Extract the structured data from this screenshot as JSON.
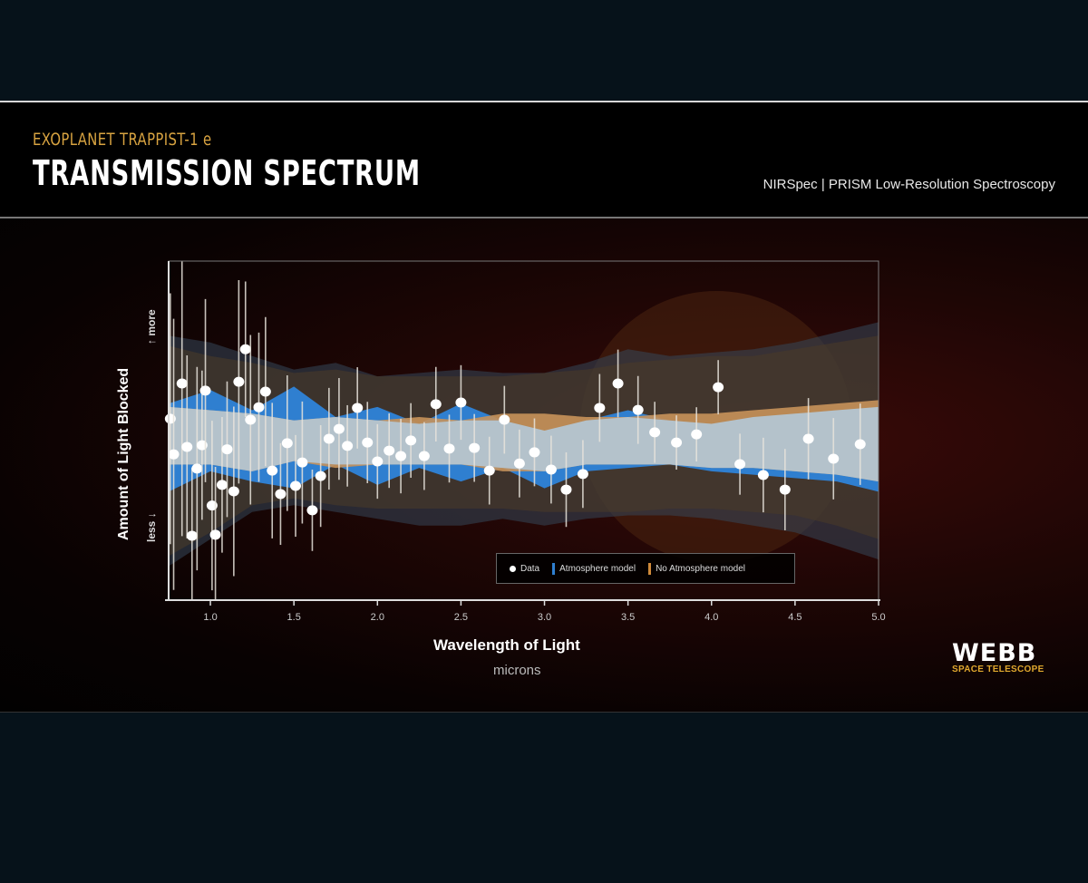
{
  "header": {
    "kicker": "EXOPLANET TRAPPIST-1 e",
    "title": "TRANSMISSION SPECTRUM",
    "instrument": "NIRSpec | PRISM Low-Resolution Spectroscopy"
  },
  "logo": {
    "name": "WEBB",
    "tagline": "SPACE TELESCOPE"
  },
  "chart_data": {
    "type": "scatter",
    "title": "",
    "xlabel": "Wavelength of Light",
    "xunit": "microns",
    "ylabel": "Amount of Light Blocked",
    "y_direction_labels": {
      "top": "more",
      "bottom": "less"
    },
    "y_units": "relative (no tick values printed)",
    "xlim": [
      0.75,
      5.0
    ],
    "ylim": [
      0,
      100
    ],
    "xticks": [
      "1.0",
      "1.5",
      "2.0",
      "2.5",
      "3.0",
      "3.5",
      "4.0",
      "4.5",
      "5.0"
    ],
    "grid": false,
    "legend_position": "bottom-right",
    "legend": [
      {
        "label": "Data",
        "color": "#ffffff"
      },
      {
        "label": "Atmosphere model",
        "color": "#2f7fd0"
      },
      {
        "label": "No Atmosphere model",
        "color": "#d08a3a"
      }
    ],
    "data": {
      "x": [
        0.76,
        0.78,
        0.83,
        0.86,
        0.89,
        0.92,
        0.95,
        0.97,
        1.01,
        1.03,
        1.07,
        1.1,
        1.14,
        1.17,
        1.21,
        1.24,
        1.29,
        1.33,
        1.37,
        1.42,
        1.46,
        1.51,
        1.55,
        1.61,
        1.66,
        1.71,
        1.77,
        1.82,
        1.88,
        1.94,
        2.0,
        2.07,
        2.14,
        2.2,
        2.28,
        2.35,
        2.43,
        2.5,
        2.58,
        2.67,
        2.76,
        2.85,
        2.94,
        3.04,
        3.13,
        3.23,
        3.33,
        3.44,
        3.56,
        3.66,
        3.79,
        3.91,
        4.04,
        4.17,
        4.31,
        4.44,
        4.58,
        4.73,
        4.89
      ],
      "y": [
        53.5,
        43.0,
        63.9,
        45.2,
        19.0,
        38.8,
        45.7,
        61.8,
        27.9,
        19.3,
        34.0,
        44.5,
        32.1,
        64.4,
        74.0,
        53.2,
        56.9,
        61.5,
        38.2,
        31.3,
        46.3,
        33.7,
        40.6,
        26.5,
        36.6,
        47.6,
        50.5,
        45.5,
        56.7,
        46.5,
        40.9,
        44.1,
        42.5,
        47.1,
        42.5,
        57.8,
        44.7,
        58.3,
        44.9,
        38.2,
        53.2,
        40.3,
        43.6,
        38.5,
        32.6,
        37.2,
        56.7,
        63.9,
        56.1,
        49.5,
        46.5,
        48.9,
        62.8,
        40.1,
        36.9,
        32.6,
        47.6,
        41.7,
        46.0
      ],
      "err": [
        37,
        40,
        45,
        27,
        20,
        30,
        22,
        27,
        25,
        20,
        20,
        20,
        25,
        30,
        20,
        25,
        22,
        22,
        20,
        15,
        20,
        15,
        18,
        12,
        15,
        15,
        15,
        12,
        12,
        12,
        11,
        11,
        11,
        11,
        10,
        11,
        10,
        11,
        10,
        10,
        10,
        10,
        10,
        10,
        11,
        10,
        10,
        10,
        10,
        9,
        8,
        8,
        8,
        9,
        11,
        12,
        12,
        12,
        12
      ]
    },
    "models": {
      "x": [
        0.75,
        1.0,
        1.25,
        1.5,
        1.75,
        2.0,
        2.25,
        2.5,
        2.75,
        3.0,
        3.25,
        3.5,
        3.75,
        4.0,
        4.25,
        4.5,
        4.75,
        5.0
      ],
      "atmosphere": {
        "inner_upper": [
          58,
          62,
          56,
          63,
          54,
          57,
          52,
          58,
          53,
          50,
          53,
          56,
          53,
          52,
          54,
          55,
          56,
          57
        ],
        "inner_lower": [
          32,
          38,
          35,
          33,
          40,
          34,
          39,
          35,
          39,
          33,
          38,
          39,
          40,
          38,
          37,
          36,
          35,
          32
        ],
        "outer_upper": [
          78,
          76,
          72,
          68,
          70,
          66,
          67,
          68,
          67,
          67,
          70,
          74,
          72,
          73,
          74,
          76,
          79,
          82
        ],
        "outer_lower": [
          10,
          18,
          26,
          28,
          26,
          24,
          22,
          22,
          24,
          22,
          24,
          25,
          25,
          24,
          22,
          20,
          16,
          12
        ]
      },
      "no_atmosphere": {
        "inner_upper": [
          57,
          56,
          55,
          53,
          54,
          53,
          54,
          53,
          55,
          55,
          54,
          54,
          55,
          55,
          56,
          57,
          58,
          59
        ],
        "inner_lower": [
          40,
          40,
          38,
          41,
          39,
          40,
          40,
          40,
          38,
          38,
          40,
          40,
          40,
          39,
          39,
          38,
          37,
          35
        ],
        "outer_upper": [
          75,
          72,
          70,
          67,
          68,
          66,
          66,
          66,
          66,
          67,
          68,
          70,
          71,
          72,
          72,
          74,
          76,
          78
        ],
        "outer_lower": [
          13,
          20,
          28,
          30,
          28,
          27,
          27,
          27,
          27,
          26,
          26,
          26,
          27,
          27,
          26,
          25,
          22,
          18
        ]
      }
    }
  }
}
